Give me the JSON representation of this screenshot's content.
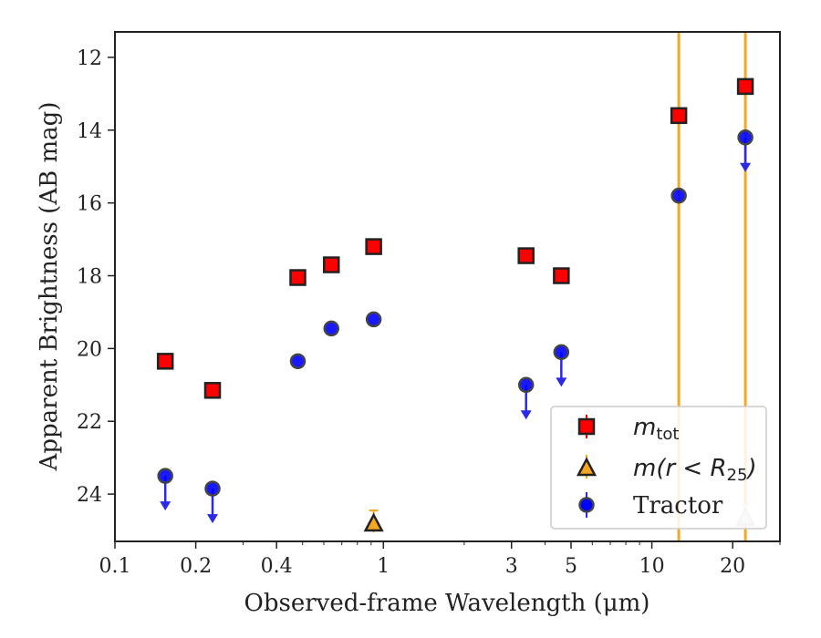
{
  "chart_data": {
    "type": "scatter",
    "title": "",
    "xlabel": "Observed-frame Wavelength (μm)",
    "ylabel": "Apparent Brightness (AB mag)",
    "x_scale": "log",
    "xlim": [
      0.1,
      30
    ],
    "ylim": [
      25.3,
      11.3
    ],
    "y_inverted": true,
    "x_ticks": [
      {
        "value": 0.1,
        "label": "0.1"
      },
      {
        "value": 0.2,
        "label": "0.2"
      },
      {
        "value": 0.4,
        "label": "0.4"
      },
      {
        "value": 1,
        "label": "1"
      },
      {
        "value": 3,
        "label": "3"
      },
      {
        "value": 5,
        "label": "5"
      },
      {
        "value": 10,
        "label": "10"
      },
      {
        "value": 20,
        "label": "20"
      }
    ],
    "y_ticks": [
      12,
      14,
      16,
      18,
      20,
      22,
      24
    ],
    "grid": false,
    "legend_position": "lower-right",
    "vertical_lines": [
      {
        "x": 12.6,
        "color": "#f5a623"
      },
      {
        "x": 22.3,
        "color": "#f5a623"
      }
    ],
    "series": [
      {
        "name": "m_tot",
        "legend_main": "m",
        "legend_sub": "tot",
        "marker": "square",
        "color": "#ff0000",
        "edge_color": "#222222",
        "x": [
          0.154,
          0.231,
          0.48,
          0.64,
          0.92,
          3.4,
          4.6,
          12.6,
          22.3
        ],
        "y": [
          20.35,
          21.15,
          18.05,
          17.7,
          17.2,
          17.45,
          18.0,
          13.6,
          12.8
        ]
      },
      {
        "name": "m(r < R25)",
        "legend_main": "m(r < R",
        "legend_sub": "25",
        "legend_end": ")",
        "marker": "triangle",
        "color": "#f5a623",
        "edge_color": "#222222",
        "x": [
          0.92
        ],
        "y": [
          24.8
        ],
        "faded_x": [
          22.3
        ],
        "faded_y": [
          24.65
        ]
      },
      {
        "name": "Tractor",
        "legend_main": "Tractor",
        "marker": "circle",
        "color": "#0000ff",
        "edge_color": "#444444",
        "x": [
          0.154,
          0.231,
          0.48,
          0.64,
          0.92,
          3.4,
          4.6,
          12.6,
          22.3
        ],
        "y": [
          23.5,
          23.85,
          20.35,
          19.45,
          19.2,
          21.0,
          20.1,
          15.8,
          14.2
        ],
        "upper_limit": [
          true,
          true,
          false,
          false,
          false,
          true,
          true,
          false,
          true
        ]
      }
    ]
  }
}
